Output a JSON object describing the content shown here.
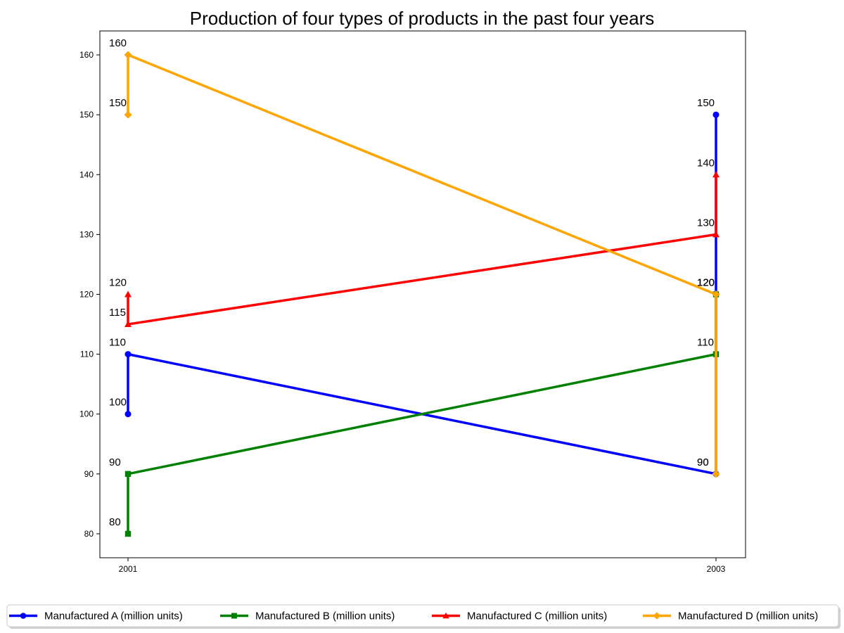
{
  "chart_data": {
    "type": "line",
    "title": "Production of four types of products in the past four years",
    "xlabel": "",
    "ylabel": "",
    "x_ticks": [
      "2001",
      "2003"
    ],
    "y_ticks": [
      80,
      90,
      100,
      110,
      120,
      130,
      140,
      150,
      160
    ],
    "ylim": [
      76,
      164
    ],
    "grid": false,
    "legend_position": "bottom",
    "series": [
      {
        "name": "Manufactured A (million units)",
        "color": "#0000ff",
        "marker": "circle",
        "points": [
          {
            "x": "2001",
            "y": 100
          },
          {
            "x": "2001",
            "y": 110
          },
          {
            "x": "2003",
            "y": 90
          },
          {
            "x": "2003",
            "y": 120
          },
          {
            "x": "2003",
            "y": 150
          }
        ]
      },
      {
        "name": "Manufactured B (million units)",
        "color": "#008000",
        "marker": "square",
        "points": [
          {
            "x": "2001",
            "y": 80
          },
          {
            "x": "2001",
            "y": 90
          },
          {
            "x": "2003",
            "y": 110
          },
          {
            "x": "2003",
            "y": 120
          }
        ]
      },
      {
        "name": "Manufactured C (million units)",
        "color": "#ff0000",
        "marker": "triangle",
        "points": [
          {
            "x": "2001",
            "y": 120
          },
          {
            "x": "2001",
            "y": 115
          },
          {
            "x": "2003",
            "y": 130
          },
          {
            "x": "2003",
            "y": 140
          }
        ]
      },
      {
        "name": "Manufactured D (million units)",
        "color": "#ffa500",
        "marker": "diamond",
        "points": [
          {
            "x": "2001",
            "y": 150
          },
          {
            "x": "2001",
            "y": 160
          },
          {
            "x": "2003",
            "y": 120
          },
          {
            "x": "2003",
            "y": 90
          }
        ]
      }
    ]
  }
}
